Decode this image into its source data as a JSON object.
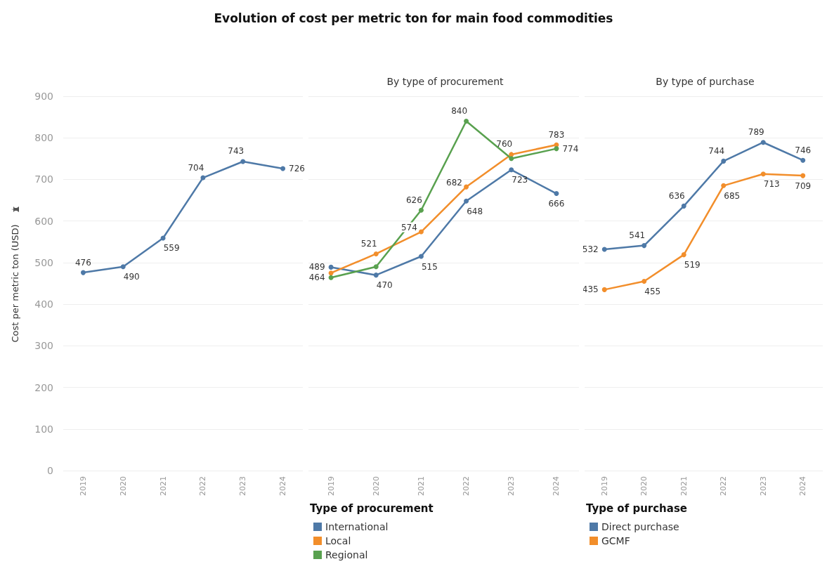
{
  "chart_data": [
    {
      "type": "line",
      "title": "Evolution of cost per metric ton for main food commodities",
      "ylabel": "Cost per metric ton (USD)",
      "categories": [
        "2019",
        "2020",
        "2021",
        "2022",
        "2023",
        "2024"
      ],
      "ylim": [
        0,
        900
      ],
      "yticks": [
        0,
        100,
        200,
        300,
        400,
        500,
        600,
        700,
        800,
        900
      ],
      "grid": "y",
      "legend": false,
      "marker": "circle",
      "line_style": "solid",
      "series": [
        {
          "color": "#4e79a7",
          "values": [
            476,
            490,
            559,
            704,
            743,
            726
          ],
          "value_labels": [
            "476",
            "490",
            "559",
            "704",
            "743",
            "726"
          ]
        }
      ]
    },
    {
      "type": "line",
      "title": "By type of procurement",
      "legend_title": "Type of procurement",
      "categories": [
        "2019",
        "2020",
        "2021",
        "2022",
        "2023",
        "2024"
      ],
      "ylim": [
        0,
        900
      ],
      "yticks": [
        0,
        100,
        200,
        300,
        400,
        500,
        600,
        700,
        800,
        900
      ],
      "tick_labels": "x",
      "grid": "y",
      "legend": "bottom left",
      "marker": "circle",
      "line_style": "solid",
      "series": [
        {
          "name": "International",
          "color": "#4e79a7",
          "values": [
            489,
            470,
            515,
            648,
            723,
            666
          ],
          "value_labels": [
            "489",
            "470",
            "515",
            "648",
            "723",
            "666"
          ]
        },
        {
          "name": "Local",
          "color": "#f28e2b",
          "values": [
            475,
            521,
            574,
            682,
            760,
            783
          ],
          "value_labels": [
            null,
            "521",
            "574",
            "682",
            "760",
            "783"
          ]
        },
        {
          "name": "Regional",
          "color": "#59a14f",
          "values": [
            464,
            490,
            626,
            840,
            750,
            774
          ],
          "value_labels": [
            "464",
            null,
            "626",
            "840",
            null,
            "774"
          ]
        }
      ]
    },
    {
      "type": "line",
      "title": "By type of purchase",
      "legend_title": "Type of purchase",
      "categories": [
        "2019",
        "2020",
        "2021",
        "2022",
        "2023",
        "2024"
      ],
      "ylim": [
        0,
        900
      ],
      "yticks": [
        0,
        100,
        200,
        300,
        400,
        500,
        600,
        700,
        800,
        900
      ],
      "tick_labels": "x",
      "grid": "y",
      "legend": "bottom left",
      "marker": "circle",
      "line_style": "solid",
      "series": [
        {
          "name": "Direct purchase",
          "color": "#4e79a7",
          "values": [
            532,
            541,
            636,
            744,
            789,
            746
          ],
          "value_labels": [
            "532",
            "541",
            "636",
            "744",
            "789",
            "746"
          ]
        },
        {
          "name": "GCMF",
          "color": "#f28e2b",
          "values": [
            435,
            455,
            519,
            685,
            713,
            709
          ],
          "value_labels": [
            "435",
            "455",
            "519",
            "685",
            "713",
            "709"
          ]
        }
      ]
    }
  ]
}
